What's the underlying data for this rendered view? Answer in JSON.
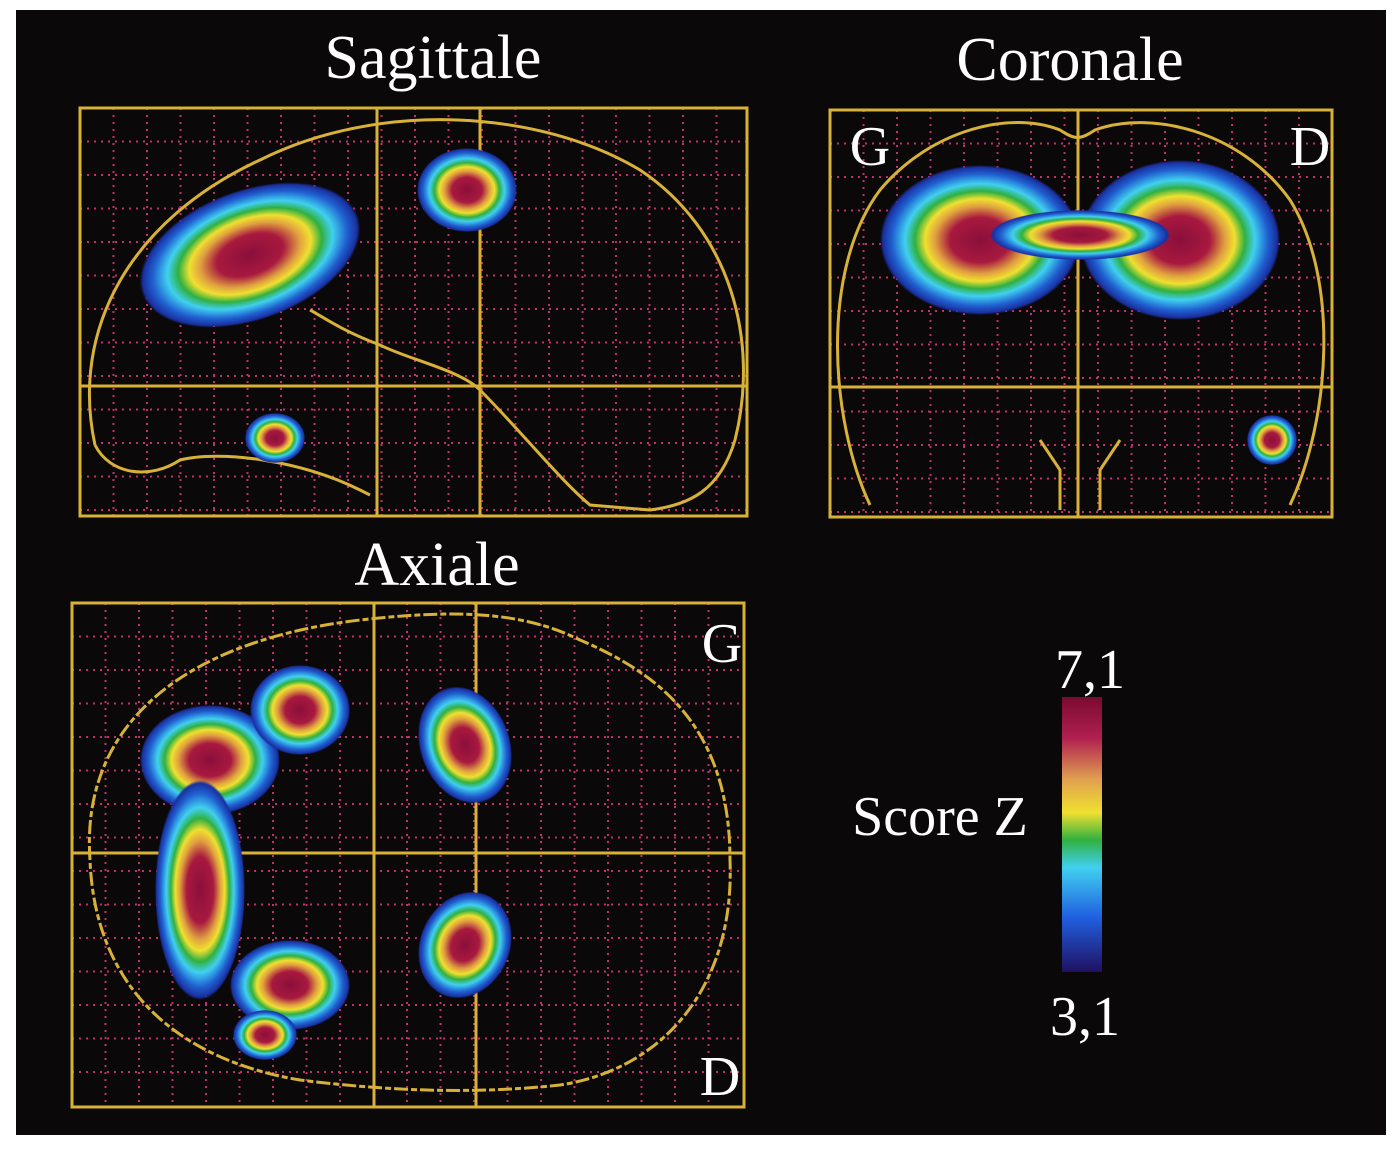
{
  "panels": [
    {
      "title": "Sagittale"
    },
    {
      "title": "Coronale",
      "left": "G",
      "right": "D"
    },
    {
      "title": "Axiale",
      "top": "G",
      "bottom": "D"
    }
  ],
  "colorbar": {
    "label": "Score Z",
    "max": "7,1",
    "min": "3,1"
  }
}
